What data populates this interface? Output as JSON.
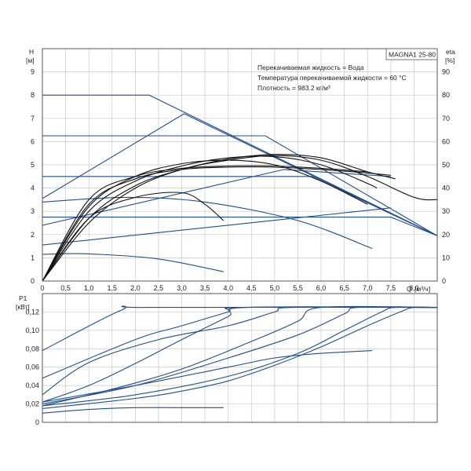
{
  "model": "MAGNA1 25-80",
  "info": [
    "Перекачиваемая жидкость = Вода",
    "Температура перекачиваемой жидкости = 60 °C",
    "Плотность = 983.2 кг/м³"
  ],
  "chart_data": [
    {
      "type": "line",
      "title": "MAGNA1 25-80",
      "y_label_top": "H",
      "y_unit": "[м]",
      "y2_label_top": "eta",
      "y2_unit": "[%]",
      "x_label": "Q",
      "x_unit": "[м³/ч]",
      "xlim": [
        0,
        8.5
      ],
      "ylim": [
        0,
        10
      ],
      "y2lim": [
        0,
        100
      ],
      "x_ticks": [
        "0",
        "0,5",
        "1,0",
        "1,5",
        "2,0",
        "2,5",
        "3,0",
        "3,5",
        "4,0",
        "4,5",
        "5,0",
        "5,5",
        "6,0",
        "6,5",
        "7,0",
        "7,5",
        "8,0"
      ],
      "y_ticks": [
        "0",
        "1",
        "2",
        "3",
        "4",
        "5",
        "6",
        "7",
        "8",
        "9"
      ],
      "y2_ticks": [
        "0",
        "10",
        "20",
        "30",
        "40",
        "50",
        "60",
        "70",
        "80",
        "90"
      ],
      "grid": true,
      "head_series": [
        {
          "color": "#1f4e8c",
          "points": [
            [
              0,
              8
            ],
            [
              2.3,
              8
            ],
            [
              8.5,
              1.95
            ]
          ]
        },
        {
          "color": "#1f4e8c",
          "points": [
            [
              0,
              6.25
            ],
            [
              4.8,
              6.25
            ],
            [
              8.5,
              1.95
            ]
          ]
        },
        {
          "color": "#1f4e8c",
          "points": [
            [
              0,
              4.5
            ],
            [
              5.8,
              4.5
            ],
            [
              8.5,
              1.95
            ]
          ]
        },
        {
          "color": "#1f4e8c",
          "points": [
            [
              0,
              2.75
            ],
            [
              7.5,
              2.75
            ],
            [
              8.5,
              1.95
            ]
          ]
        },
        {
          "color": "#1f4e8c",
          "points": [
            [
              0,
              3.55
            ],
            [
              3.05,
              7.2
            ],
            [
              8.5,
              1.95
            ]
          ]
        },
        {
          "color": "#1f4e8c",
          "points": [
            [
              0,
              2.4
            ],
            [
              5.2,
              4.8
            ],
            [
              7.5,
              4.5
            ]
          ]
        },
        {
          "color": "#1f4e8c",
          "points": [
            [
              0,
              1.55
            ],
            [
              7.5,
              3.15
            ]
          ]
        },
        {
          "color": "#1f4e8c",
          "points": [
            [
              0,
              3.4
            ],
            [
              1.8,
              3.6
            ],
            [
              3.5,
              3.4
            ],
            [
              5.5,
              2.6
            ],
            [
              7.1,
              1.4
            ]
          ]
        },
        {
          "color": "#1f4e8c",
          "points": [
            [
              0,
              1.15
            ],
            [
              1.0,
              1.17
            ],
            [
              2.5,
              0.95
            ],
            [
              3.9,
              0.4
            ]
          ]
        }
      ],
      "eta_series": [
        {
          "color": "#111111",
          "points": [
            [
              0,
              0
            ],
            [
              1,
              25
            ],
            [
              2,
              40
            ],
            [
              3,
              48
            ],
            [
              4,
              52
            ],
            [
              5,
              54
            ],
            [
              6,
              52
            ],
            [
              7,
              45
            ],
            [
              8,
              36
            ],
            [
              8.5,
              35
            ]
          ]
        },
        {
          "color": "#111111",
          "points": [
            [
              0,
              0
            ],
            [
              1,
              27
            ],
            [
              2,
              41
            ],
            [
              3,
              48
            ],
            [
              4,
              52.5
            ],
            [
              5,
              54.5
            ],
            [
              6,
              53
            ],
            [
              7,
              47
            ],
            [
              7.6,
              44
            ]
          ]
        },
        {
          "color": "#111111",
          "points": [
            [
              0,
              0
            ],
            [
              1,
              30
            ],
            [
              2,
              43
            ],
            [
              3,
              49.5
            ],
            [
              4,
              53
            ],
            [
              5,
              53.5
            ],
            [
              6,
              50
            ],
            [
              7,
              42
            ],
            [
              7.2,
              40
            ]
          ]
        },
        {
          "color": "#111111",
          "points": [
            [
              0,
              0
            ],
            [
              1,
              32
            ],
            [
              2,
              45
            ],
            [
              3,
              50.5
            ],
            [
              4,
              52
            ],
            [
              5,
              50
            ],
            [
              6,
              43
            ],
            [
              7,
              33
            ]
          ]
        },
        {
          "color": "#111111",
          "points": [
            [
              0,
              0
            ],
            [
              1,
              27
            ],
            [
              2,
              36
            ],
            [
              3,
              38
            ],
            [
              3.5,
              33
            ],
            [
              3.9,
              26
            ]
          ]
        },
        {
          "color": "#111111",
          "points": [
            [
              0,
              0
            ],
            [
              1,
              33
            ],
            [
              2,
              44
            ],
            [
              3,
              48
            ],
            [
              4,
              49
            ],
            [
              5,
              49
            ],
            [
              6,
              48
            ],
            [
              7,
              46.5
            ],
            [
              7.5,
              45.5
            ]
          ]
        },
        {
          "color": "#111111",
          "points": [
            [
              0,
              0
            ],
            [
              1,
              35
            ],
            [
              2,
              45
            ],
            [
              3,
              48.5
            ],
            [
              4,
              49.5
            ],
            [
              5,
              49.5
            ],
            [
              6,
              48.5
            ],
            [
              7,
              47
            ]
          ]
        }
      ]
    },
    {
      "type": "line",
      "y_label_top": "P1",
      "y_unit": "[кВт]",
      "xlim": [
        0,
        8.5
      ],
      "ylim": [
        0,
        0.14
      ],
      "y_ticks": [
        "0",
        "0,02",
        "0,04",
        "0,06",
        "0,08",
        "0,10",
        "0,12"
      ],
      "grid": true,
      "series": [
        {
          "color": "#1f4e8c",
          "points": [
            [
              0,
              0.078
            ],
            [
              1.7,
              0.122
            ],
            [
              2.3,
              0.125
            ],
            [
              8.5,
              0.125
            ]
          ]
        },
        {
          "color": "#1f4e8c",
          "points": [
            [
              0,
              0.048
            ],
            [
              2.0,
              0.09
            ],
            [
              3.0,
              0.105
            ],
            [
              4.0,
              0.12
            ],
            [
              4.3,
              0.125
            ],
            [
              8.5,
              0.125
            ]
          ]
        },
        {
          "color": "#1f4e8c",
          "points": [
            [
              0,
              0.022
            ],
            [
              1.0,
              0.04
            ],
            [
              2.0,
              0.064
            ],
            [
              3.0,
              0.09
            ],
            [
              4.0,
              0.115
            ],
            [
              4.4,
              0.125
            ],
            [
              8.5,
              0.125
            ]
          ]
        },
        {
          "color": "#1f4e8c",
          "points": [
            [
              0,
              0.03
            ],
            [
              1.0,
              0.065
            ],
            [
              2.5,
              0.09
            ],
            [
              4.0,
              0.105
            ],
            [
              5.0,
              0.12
            ],
            [
              5.4,
              0.125
            ],
            [
              8.5,
              0.125
            ]
          ]
        },
        {
          "color": "#1f4e8c",
          "points": [
            [
              0,
              0.018
            ],
            [
              1.5,
              0.036
            ],
            [
              3.0,
              0.058
            ],
            [
              4.5,
              0.088
            ],
            [
              5.5,
              0.11
            ],
            [
              6.0,
              0.125
            ],
            [
              8.5,
              0.125
            ]
          ]
        },
        {
          "color": "#1f4e8c",
          "points": [
            [
              0,
              0.02
            ],
            [
              2.0,
              0.04
            ],
            [
              4.0,
              0.07
            ],
            [
              5.5,
              0.095
            ],
            [
              6.5,
              0.118
            ],
            [
              6.8,
              0.125
            ],
            [
              8.5,
              0.125
            ]
          ]
        },
        {
          "color": "#1f4e8c",
          "points": [
            [
              0,
              0.018
            ],
            [
              2.0,
              0.03
            ],
            [
              4.0,
              0.05
            ],
            [
              5.5,
              0.075
            ],
            [
              6.5,
              0.1
            ],
            [
              7.3,
              0.12
            ],
            [
              7.6,
              0.125
            ],
            [
              8.5,
              0.125
            ]
          ]
        },
        {
          "color": "#1f4e8c",
          "points": [
            [
              0,
              0.015
            ],
            [
              2.0,
              0.026
            ],
            [
              3.0,
              0.034
            ],
            [
              4.0,
              0.045
            ],
            [
              5.0,
              0.062
            ],
            [
              6.0,
              0.082
            ],
            [
              7.0,
              0.105
            ],
            [
              7.7,
              0.12
            ],
            [
              8.0,
              0.125
            ],
            [
              8.5,
              0.125
            ]
          ]
        },
        {
          "color": "#1f4e8c",
          "points": [
            [
              0,
              0.022
            ],
            [
              2.0,
              0.04
            ],
            [
              4.0,
              0.06
            ],
            [
              5.0,
              0.07
            ],
            [
              6.0,
              0.075
            ],
            [
              7.1,
              0.078
            ]
          ]
        },
        {
          "color": "#1f4e8c",
          "points": [
            [
              0,
              0.01
            ],
            [
              1.0,
              0.014
            ],
            [
              2.0,
              0.016
            ],
            [
              3.0,
              0.016
            ],
            [
              3.9,
              0.016
            ]
          ]
        }
      ]
    }
  ]
}
